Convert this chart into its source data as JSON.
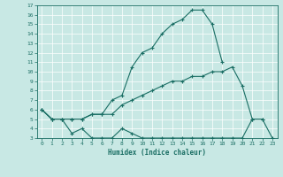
{
  "xlabel": "Humidex (Indice chaleur)",
  "xlim": [
    -0.5,
    23.5
  ],
  "ylim": [
    3,
    17
  ],
  "yticks": [
    3,
    4,
    5,
    6,
    7,
    8,
    9,
    10,
    11,
    12,
    13,
    14,
    15,
    16,
    17
  ],
  "xticks": [
    0,
    1,
    2,
    3,
    4,
    5,
    6,
    7,
    8,
    9,
    10,
    11,
    12,
    13,
    14,
    15,
    16,
    17,
    18,
    19,
    20,
    21,
    22,
    23
  ],
  "bg_color": "#c8e8e4",
  "line_color": "#1a6e64",
  "line1_x": [
    0,
    1,
    2,
    3,
    4,
    5,
    6,
    7,
    8,
    9,
    10,
    11,
    12,
    13,
    14,
    15,
    16,
    17,
    18
  ],
  "line1_y": [
    6.0,
    5.0,
    5.0,
    5.0,
    5.0,
    5.5,
    5.5,
    7.0,
    7.5,
    10.5,
    12.0,
    12.5,
    14.0,
    15.0,
    15.5,
    16.5,
    16.5,
    15.0,
    11.0
  ],
  "line2_x": [
    0,
    1,
    2,
    3,
    4,
    5,
    6,
    7,
    8,
    9,
    10,
    11,
    12,
    13,
    14,
    15,
    16,
    17,
    18,
    19,
    20,
    21,
    22
  ],
  "line2_y": [
    6.0,
    5.0,
    5.0,
    5.0,
    5.0,
    5.5,
    5.5,
    5.5,
    6.5,
    7.0,
    7.5,
    8.0,
    8.5,
    9.0,
    9.0,
    9.5,
    9.5,
    10.0,
    10.0,
    10.5,
    8.5,
    5.0,
    5.0
  ],
  "line3_x": [
    0,
    1,
    2,
    3,
    4,
    5,
    6,
    7,
    8,
    9,
    10,
    11,
    12,
    13,
    14,
    15,
    16,
    17,
    18,
    19,
    20,
    21,
    22,
    23
  ],
  "line3_y": [
    6.0,
    5.0,
    5.0,
    3.5,
    4.0,
    3.0,
    3.0,
    3.0,
    4.0,
    3.5,
    3.0,
    3.0,
    3.0,
    3.0,
    3.0,
    3.0,
    3.0,
    3.0,
    3.0,
    3.0,
    3.0,
    5.0,
    5.0,
    3.0
  ]
}
